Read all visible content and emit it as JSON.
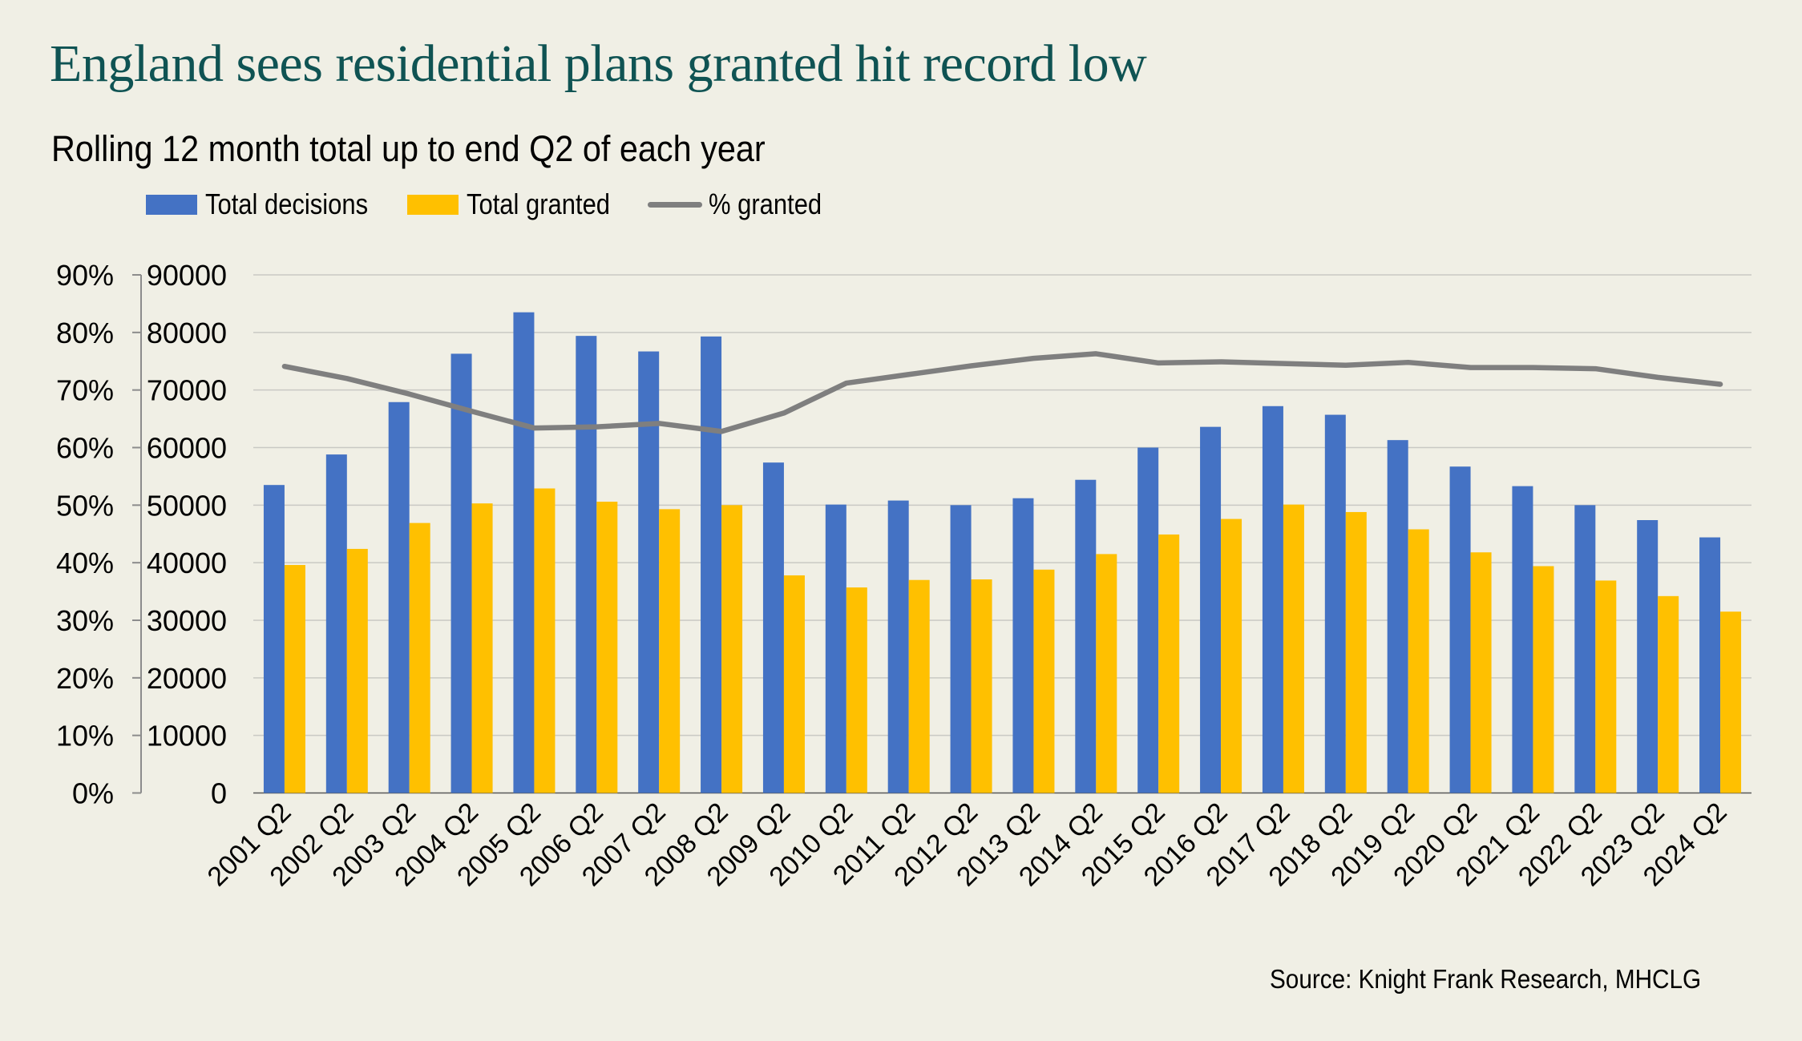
{
  "header": {
    "title": "England sees residential plans granted hit record low",
    "subtitle": "Rolling 12 month total up to end Q2 of each year"
  },
  "legend": [
    {
      "label": "Total decisions",
      "type": "box",
      "color": "#4472c4"
    },
    {
      "label": "Total granted",
      "type": "box",
      "color": "#ffc000"
    },
    {
      "label": "% granted",
      "type": "line",
      "color": "#7f7f7f"
    }
  ],
  "footer": {
    "source": "Source: Knight Frank Research, MHCLG"
  },
  "chart_data": {
    "type": "bar",
    "title": "England sees residential plans granted hit record low",
    "subtitle": "Rolling 12 month total up to end Q2 of each year",
    "xlabel": "",
    "ylabel": "",
    "categories": [
      "2001 Q2",
      "2002 Q2",
      "2003 Q2",
      "2004 Q2",
      "2005 Q2",
      "2006 Q2",
      "2007 Q2",
      "2008 Q2",
      "2009 Q2",
      "2010 Q2",
      "2011 Q2",
      "2012 Q2",
      "2013 Q2",
      "2014 Q2",
      "2015 Q2",
      "2016 Q2",
      "2017 Q2",
      "2018 Q2",
      "2019 Q2",
      "2020 Q2",
      "2021 Q2",
      "2022 Q2",
      "2023 Q2",
      "2024 Q2"
    ],
    "series": [
      {
        "name": "Total decisions",
        "type": "bar",
        "axis": "primary",
        "color": "#4472c4",
        "values": [
          53500,
          58800,
          67900,
          76300,
          83500,
          79400,
          76700,
          79300,
          57400,
          50100,
          50800,
          50000,
          51200,
          54400,
          60000,
          63600,
          67200,
          65700,
          61300,
          56700,
          53300,
          50000,
          47400,
          44400
        ]
      },
      {
        "name": "Total granted",
        "type": "bar",
        "axis": "primary",
        "color": "#ffc000",
        "values": [
          39600,
          42400,
          46900,
          50300,
          52900,
          50600,
          49300,
          50000,
          37800,
          35700,
          37000,
          37100,
          38800,
          41500,
          44900,
          47600,
          50100,
          48800,
          45800,
          41800,
          39400,
          36900,
          34200,
          31500
        ]
      },
      {
        "name": "% granted",
        "type": "line",
        "axis": "secondary",
        "color": "#7f7f7f",
        "values": [
          74.1,
          72.0,
          69.3,
          66.3,
          63.4,
          63.6,
          64.2,
          62.8,
          66.0,
          71.2,
          72.7,
          74.2,
          75.5,
          76.3,
          74.7,
          74.9,
          74.6,
          74.3,
          74.8,
          73.9,
          73.9,
          73.7,
          72.2,
          71.0
        ]
      }
    ],
    "y_primary": {
      "min": 0,
      "max": 90000,
      "step": 10000,
      "ticks": [
        "0",
        "10000",
        "20000",
        "30000",
        "40000",
        "50000",
        "60000",
        "70000",
        "80000",
        "90000"
      ]
    },
    "y_secondary": {
      "min": 0,
      "max": 90,
      "step": 10,
      "unit": "%",
      "ticks": [
        "0%",
        "10%",
        "20%",
        "30%",
        "40%",
        "50%",
        "60%",
        "70%",
        "80%",
        "90%"
      ]
    },
    "grid": true,
    "legend_position": "top-left",
    "source": "Source: Knight Frank Research, MHCLG"
  }
}
